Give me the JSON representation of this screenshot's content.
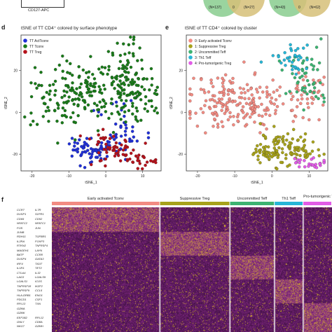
{
  "top": {
    "xlabel": "CD127-APC",
    "circle_a": {
      "left": "(N=137)",
      "mid": "0",
      "right": "(N=27)"
    },
    "circle_b": {
      "left": "(N=43)",
      "mid": "0",
      "right": "(N=62)"
    }
  },
  "colors": {
    "actTconv": "#1f2fd6",
    "tconv": "#1a7a1a",
    "treg": "#b5121b",
    "c0": "#f28b82",
    "c1": "#a7a21b",
    "c2": "#3cb371",
    "c3": "#26b6d6",
    "c4": "#e15ce6",
    "venn_green": "#8fcf95",
    "venn_tan": "#d6bf78",
    "heat_low": "#2a0a2e",
    "heat_mid": "#8a2a8a",
    "heat_high": "#f2e600"
  },
  "panel_d": {
    "letter": "d",
    "title": "tSNE of TT CD4⁺ colored by surface phenotype",
    "legend": [
      "TT ActTconv",
      "TT Tconv",
      "TT Treg"
    ]
  },
  "panel_e": {
    "letter": "e",
    "title": "tSNE of TT CD4⁺ colored by cluster",
    "legend": [
      "0: Early activated Tconv",
      "1: Suppressive Treg",
      "2: Uncommitted Teff",
      "3: Th1 Teff",
      "4: Pro-tumorigenic Treg"
    ]
  },
  "panel_f": {
    "letter": "f",
    "clusters": [
      "Early activated Tconv",
      "Suppressive Treg",
      "Uncommitted Teff",
      "Th1 Teff",
      "Pro-tumorigenic Treg"
    ],
    "genes_left": [
      "CCR7",
      "DUSP1",
      "CD69",
      "NFATC2",
      "FOS",
      "JUNB",
      "RDH11",
      "IL2RA",
      "RTKN2",
      "MAGEH1",
      "BATF",
      "DUSP4",
      "IRF4",
      "IL1R1",
      "CTLA4",
      "LAG3",
      "LGALS1",
      "TNFRSF18",
      "TNFRSF9",
      "HLA-DRB1",
      "PDCD1",
      "RPL13",
      "GZMA",
      "GZMK",
      "EEF1B2",
      "GNLY",
      "NKG7"
    ],
    "genes_right": [
      "IL7R",
      "S1PR1",
      "CD52",
      "NFATC1",
      "JUN",
      "",
      "TGFBR1",
      "FOXP3",
      "TNFRSF4",
      "LAYN",
      "CCR8",
      "GATA3",
      "TIGIT",
      "TET2",
      "IL32",
      "LGALS9",
      "ICOS",
      "IKZF2",
      "CCL5",
      "ENO1",
      "CSF1",
      "TXN",
      "",
      "",
      "RPL12",
      "CD8A",
      "GZMH"
    ]
  },
  "chart_data": [
    {
      "type": "scatter",
      "title": "tSNE of TT CD4⁺ colored by surface phenotype",
      "xlabel": "tSNE_1",
      "ylabel": "tSNE_2",
      "xlim": [
        -23,
        15
      ],
      "ylim": [
        -28,
        37
      ],
      "xticks": [
        -20,
        -10,
        0,
        10
      ],
      "yticks": [
        -20,
        0,
        20
      ],
      "legend_position": "top-left",
      "series": [
        {
          "name": "TT ActTconv",
          "color_key": "actTconv",
          "regions": [
            {
              "cx": -4,
              "cy": -18,
              "sx": 3,
              "sy": 3,
              "n": 70
            },
            {
              "cx": 6,
              "cy": -12,
              "sx": 3,
              "sy": 4,
              "n": 30
            },
            {
              "cx": 3,
              "cy": 2,
              "sx": 3,
              "sy": 3,
              "n": 10
            }
          ]
        },
        {
          "name": "TT Tconv",
          "color_key": "tconv",
          "regions": [
            {
              "cx": -8,
              "cy": 8,
              "sx": 7,
              "sy": 8,
              "n": 180
            },
            {
              "cx": 6,
              "cy": 18,
              "sx": 3,
              "sy": 10,
              "n": 90
            },
            {
              "cx": 10,
              "cy": 8,
              "sx": 3,
              "sy": 6,
              "n": 40
            }
          ]
        },
        {
          "name": "TT Treg",
          "color_key": "treg",
          "regions": [
            {
              "cx": 4,
              "cy": -19,
              "sx": 4,
              "sy": 3,
              "n": 45
            },
            {
              "cx": 10,
              "cy": -23,
              "sx": 2,
              "sy": 2,
              "n": 20
            },
            {
              "cx": -2,
              "cy": -12,
              "sx": 2,
              "sy": 2,
              "n": 12
            }
          ]
        }
      ]
    },
    {
      "type": "scatter",
      "title": "tSNE of TT CD4⁺ colored by cluster",
      "xlabel": "tSNE_1",
      "ylabel": "tSNE_2",
      "xlim": [
        -23,
        15
      ],
      "ylim": [
        -28,
        37
      ],
      "xticks": [
        -20,
        -10,
        0,
        10
      ],
      "yticks": [
        -20,
        0,
        20
      ],
      "legend_position": "top-left",
      "series": [
        {
          "name": "0: Early activated Tconv",
          "color_key": "c0",
          "regions": [
            {
              "cx": -9,
              "cy": 5,
              "sx": 7,
              "sy": 7,
              "n": 200
            },
            {
              "cx": 9,
              "cy": 8,
              "sx": 3,
              "sy": 5,
              "n": 40
            }
          ]
        },
        {
          "name": "1: Suppressive Treg",
          "color_key": "c1",
          "regions": [
            {
              "cx": 4,
              "cy": -17,
              "sx": 4,
              "sy": 4,
              "n": 110
            },
            {
              "cx": -2,
              "cy": -20,
              "sx": 2,
              "sy": 2,
              "n": 20
            }
          ]
        },
        {
          "name": "2: Uncommitted Teff",
          "color_key": "c2",
          "regions": [
            {
              "cx": 8,
              "cy": 22,
              "sx": 4,
              "sy": 5,
              "n": 30
            },
            {
              "cx": 10,
              "cy": 10,
              "sx": 3,
              "sy": 4,
              "n": 20
            }
          ]
        },
        {
          "name": "3: Th1 Teff",
          "color_key": "c3",
          "regions": [
            {
              "cx": 5,
              "cy": 27,
              "sx": 3,
              "sy": 4,
              "n": 35
            }
          ]
        },
        {
          "name": "4: Pro-tumorigenic Treg",
          "color_key": "c4",
          "regions": [
            {
              "cx": 10,
              "cy": -24,
              "sx": 2,
              "sy": 1.5,
              "n": 25
            }
          ]
        }
      ]
    },
    {
      "type": "heatmap",
      "columns": [
        "Early activated Tconv",
        "Suppressive Treg",
        "Uncommitted Teff",
        "Th1 Teff",
        "Pro-tumorigenic Treg"
      ],
      "column_colors": [
        "c0",
        "c1",
        "c2",
        "c3",
        "c4"
      ]
    }
  ]
}
